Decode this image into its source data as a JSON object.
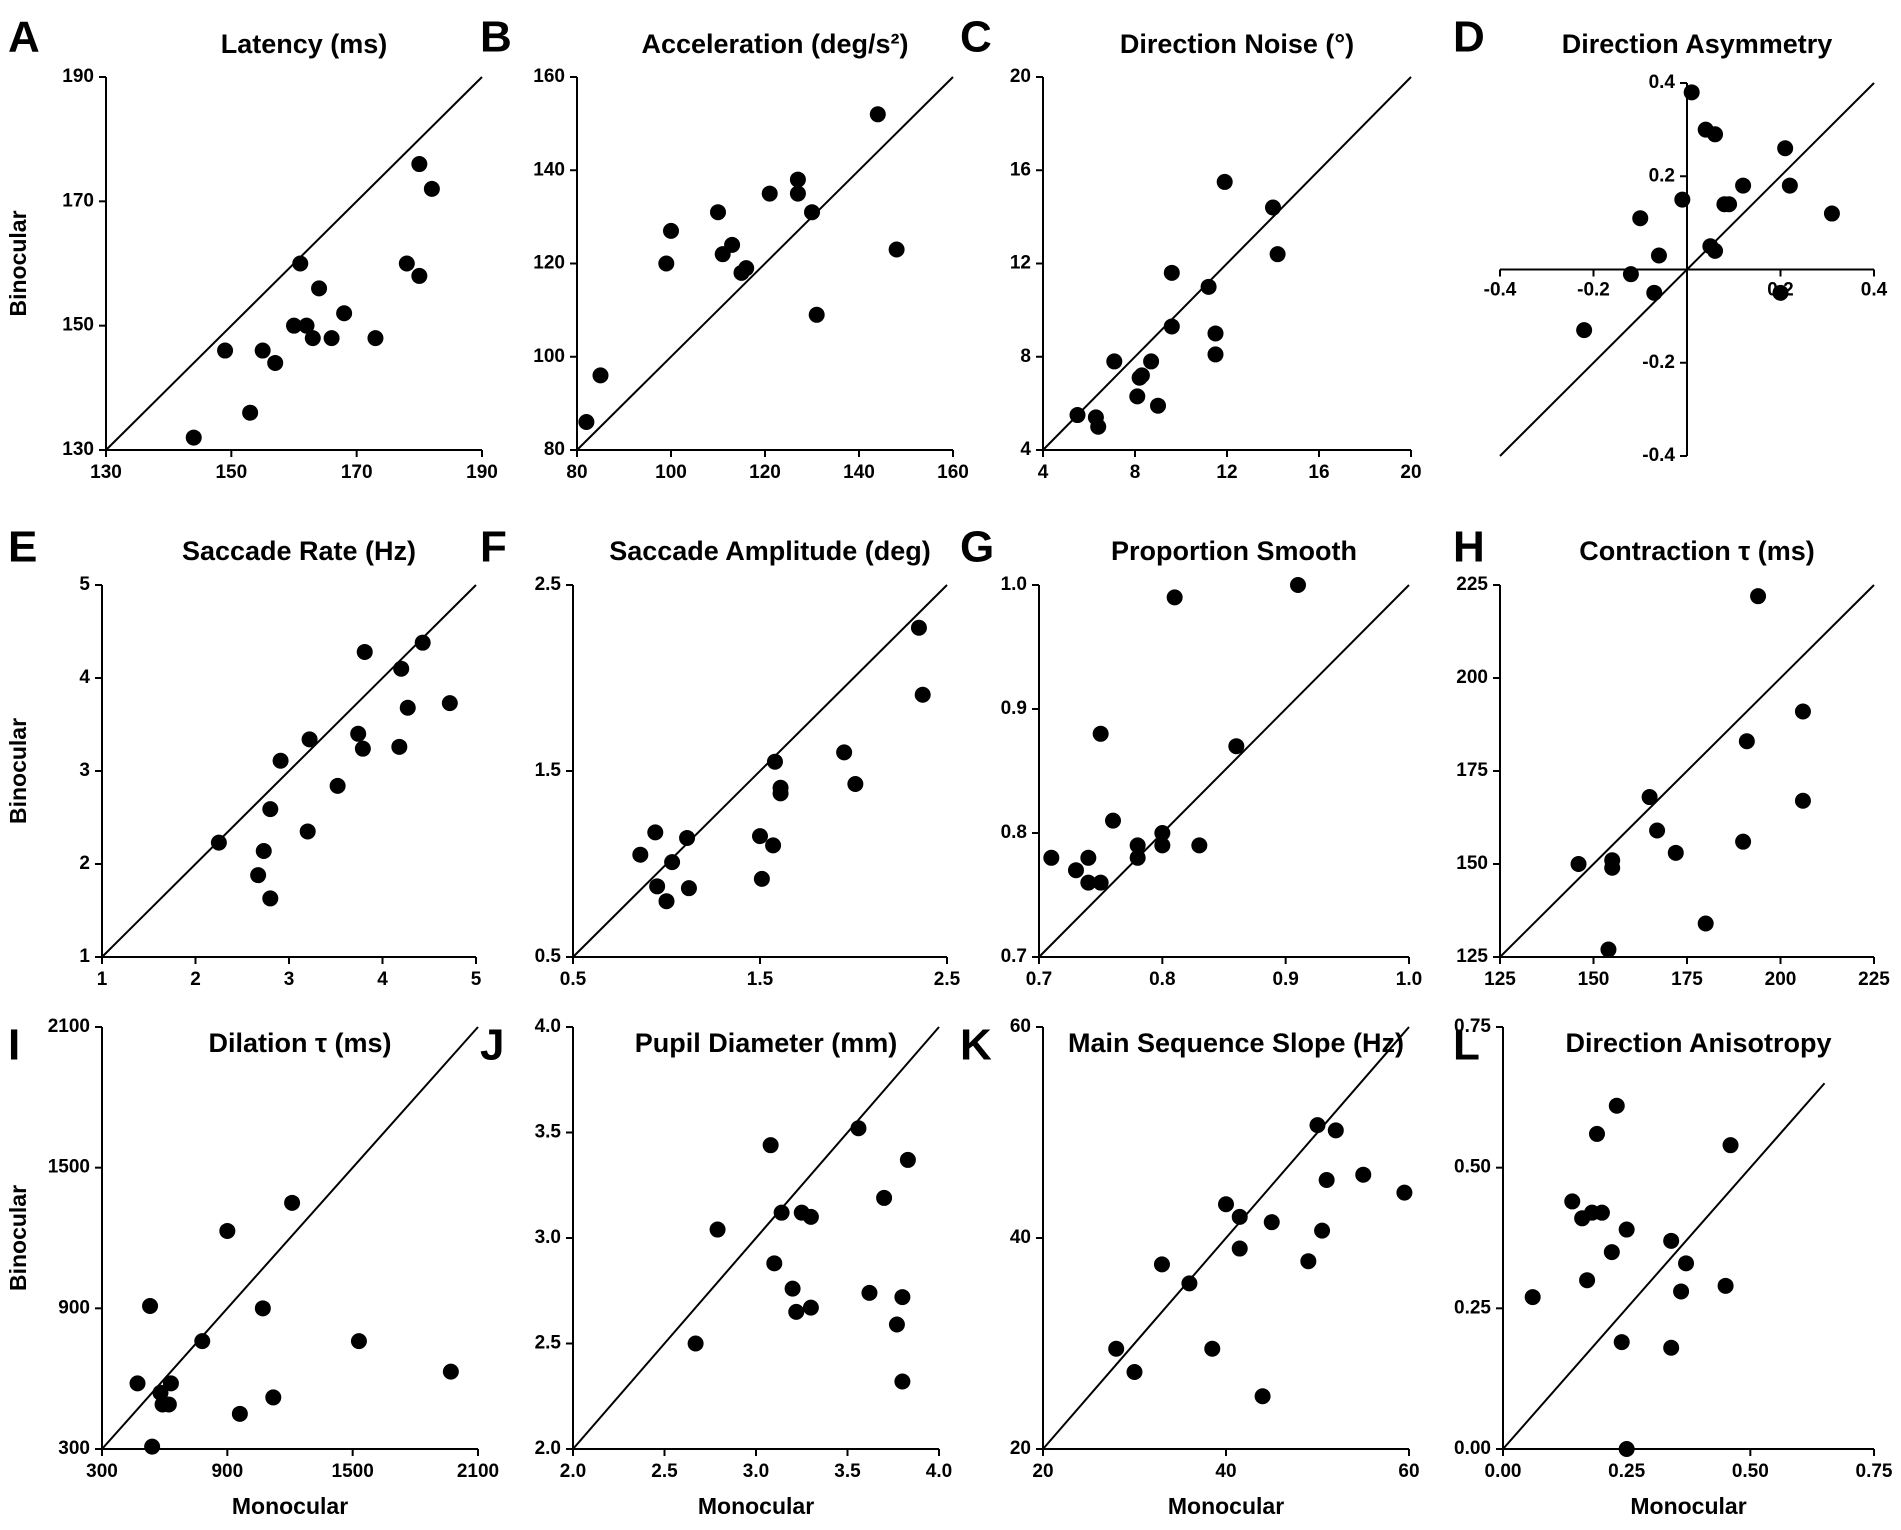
{
  "chart_data": [
    {
      "id": "A",
      "type": "scatter",
      "title": "Latency (ms)",
      "xlabel": "",
      "ylabel": "Binocular",
      "xlim": [
        130,
        190
      ],
      "ylim": [
        130,
        190
      ],
      "xticks": [
        "130",
        "150",
        "170",
        "190"
      ],
      "yticks": [
        "130",
        "150",
        "170",
        "190"
      ],
      "identity_line": true,
      "x": [
        144,
        149,
        153,
        155,
        157,
        160,
        161,
        162,
        163,
        164,
        166,
        168,
        173,
        178,
        180,
        180,
        182
      ],
      "y": [
        132,
        146,
        136,
        146,
        144,
        150,
        160,
        150,
        148,
        156,
        148,
        152,
        148,
        160,
        176,
        158,
        172
      ]
    },
    {
      "id": "B",
      "type": "scatter",
      "title": "Acceleration (deg/s²)",
      "xlabel": "",
      "ylabel": "",
      "xlim": [
        80,
        160
      ],
      "ylim": [
        80,
        160
      ],
      "xticks": [
        "80",
        "100",
        "120",
        "140",
        "160"
      ],
      "yticks": [
        "80",
        "100",
        "120",
        "140",
        "160"
      ],
      "identity_line": true,
      "x": [
        82,
        85,
        99,
        100,
        110,
        111,
        113,
        115,
        116,
        121,
        127,
        127,
        130,
        131,
        144,
        148
      ],
      "y": [
        86,
        96,
        120,
        127,
        131,
        122,
        124,
        118,
        119,
        135,
        138,
        135,
        131,
        109,
        152,
        123
      ]
    },
    {
      "id": "C",
      "type": "scatter",
      "title": "Direction Noise (°)",
      "xlabel": "",
      "ylabel": "",
      "xlim": [
        4,
        20
      ],
      "ylim": [
        4,
        20
      ],
      "xticks": [
        "4",
        "8",
        "12",
        "16",
        "20"
      ],
      "yticks": [
        "4",
        "8",
        "12",
        "16",
        "20"
      ],
      "identity_line": true,
      "x": [
        5.5,
        6.3,
        6.4,
        7.1,
        8.1,
        8.2,
        8.3,
        8.7,
        9.0,
        9.6,
        9.6,
        11.2,
        11.5,
        11.5,
        11.9,
        14.0,
        14.2
      ],
      "y": [
        5.5,
        5.4,
        5.0,
        7.8,
        6.3,
        7.1,
        7.2,
        7.8,
        5.9,
        9.3,
        11.6,
        11.0,
        9.0,
        8.1,
        15.5,
        14.4,
        12.4
      ]
    },
    {
      "id": "D",
      "type": "scatter",
      "title": "Direction Asymmetry",
      "xlabel": "",
      "ylabel": "",
      "xlim": [
        -0.4,
        0.4
      ],
      "ylim": [
        -0.4,
        0.4
      ],
      "xticks": [
        "-0.4",
        "-0.2",
        "0.2",
        "0.4"
      ],
      "yticks": [
        "-0.4",
        "-0.2",
        "0.2",
        "0.4"
      ],
      "xtick_values": [
        -0.4,
        -0.2,
        0.2,
        0.4
      ],
      "ytick_values": [
        -0.4,
        -0.2,
        0.2,
        0.4
      ],
      "identity_line": true,
      "centered_axes": true,
      "x": [
        -0.22,
        -0.12,
        -0.1,
        -0.07,
        -0.06,
        -0.01,
        0.01,
        0.04,
        0.05,
        0.06,
        0.06,
        0.08,
        0.09,
        0.12,
        0.2,
        0.21,
        0.22,
        0.31
      ],
      "y": [
        -0.13,
        -0.01,
        0.11,
        -0.05,
        0.03,
        0.15,
        0.38,
        0.3,
        0.05,
        0.04,
        0.29,
        0.14,
        0.14,
        0.18,
        -0.05,
        0.26,
        0.18,
        0.12
      ]
    },
    {
      "id": "E",
      "type": "scatter",
      "title": "Saccade Rate (Hz)",
      "xlabel": "",
      "ylabel": "Binocular",
      "xlim": [
        1,
        5
      ],
      "ylim": [
        1,
        5
      ],
      "xticks": [
        "1",
        "2",
        "3",
        "4",
        "5"
      ],
      "yticks": [
        "1",
        "2",
        "3",
        "4",
        "5"
      ],
      "identity_line": true,
      "x": [
        2.25,
        2.67,
        2.73,
        2.8,
        2.8,
        2.91,
        3.2,
        3.22,
        3.52,
        3.74,
        3.79,
        3.81,
        4.18,
        4.2,
        4.27,
        4.43,
        4.72
      ],
      "y": [
        2.23,
        1.88,
        2.14,
        2.59,
        1.63,
        3.11,
        2.35,
        3.34,
        2.84,
        3.4,
        3.24,
        4.28,
        3.26,
        4.1,
        3.68,
        4.38,
        3.73
      ]
    },
    {
      "id": "F",
      "type": "scatter",
      "title": "Saccade Amplitude (deg)",
      "xlabel": "",
      "ylabel": "",
      "xlim": [
        0.5,
        2.5
      ],
      "ylim": [
        0.5,
        2.5
      ],
      "xticks": [
        "0.5",
        "1.5",
        "2.5"
      ],
      "yticks": [
        "0.5",
        "1.5",
        "2.5"
      ],
      "xtick_values": [
        0.5,
        1.5,
        2.5
      ],
      "ytick_values": [
        0.5,
        1.5,
        2.5
      ],
      "identity_line": true,
      "x": [
        0.86,
        0.94,
        0.95,
        1.0,
        1.03,
        1.11,
        1.12,
        1.5,
        1.51,
        1.57,
        1.58,
        1.61,
        1.61,
        1.95,
        2.01,
        2.35,
        2.37
      ],
      "y": [
        1.05,
        1.17,
        0.88,
        0.8,
        1.01,
        1.14,
        0.87,
        1.15,
        0.92,
        1.1,
        1.55,
        1.41,
        1.38,
        1.6,
        1.43,
        2.27,
        1.91
      ]
    },
    {
      "id": "G",
      "type": "scatter",
      "title": "Proportion Smooth",
      "xlabel": "",
      "ylabel": "",
      "xlim": [
        0.7,
        1.0
      ],
      "ylim": [
        0.7,
        1.0
      ],
      "xticks": [
        "0.7",
        "0.8",
        "0.9",
        "1.0"
      ],
      "yticks": [
        "0.7",
        "0.8",
        "0.9",
        "1.0"
      ],
      "identity_line": true,
      "x": [
        0.71,
        0.73,
        0.74,
        0.74,
        0.75,
        0.75,
        0.76,
        0.78,
        0.78,
        0.8,
        0.8,
        0.81,
        0.83,
        0.86,
        0.91
      ],
      "y": [
        0.78,
        0.77,
        0.78,
        0.76,
        0.88,
        0.76,
        0.81,
        0.79,
        0.78,
        0.8,
        0.79,
        0.99,
        0.79,
        0.87,
        1.0
      ]
    },
    {
      "id": "H",
      "type": "scatter",
      "title": "Contraction τ (ms)",
      "xlabel": "",
      "ylabel": "",
      "xlim": [
        125,
        225
      ],
      "ylim": [
        125,
        225
      ],
      "xticks": [
        "125",
        "150",
        "175",
        "200",
        "225"
      ],
      "yticks": [
        "125",
        "150",
        "175",
        "200",
        "225"
      ],
      "identity_line": true,
      "x": [
        146,
        154,
        155,
        155,
        165,
        167,
        172,
        180,
        190,
        191,
        194,
        206,
        206
      ],
      "y": [
        150,
        127,
        151,
        149,
        168,
        159,
        153,
        134,
        156,
        183,
        222,
        191,
        167
      ]
    },
    {
      "id": "I",
      "type": "scatter",
      "title": "Dilation τ (ms)",
      "xlabel": "Monocular",
      "ylabel": "Binocular",
      "xlim": [
        300,
        2100
      ],
      "ylim": [
        300,
        2100
      ],
      "xticks": [
        "300",
        "900",
        "1500",
        "2100"
      ],
      "yticks": [
        "300",
        "900",
        "1500",
        "2100"
      ],
      "xtick_values": [
        300,
        900,
        1500,
        2100
      ],
      "ytick_values": [
        300,
        900,
        1500,
        2100
      ],
      "identity_line": true,
      "x": [
        470,
        530,
        540,
        580,
        590,
        620,
        630,
        780,
        900,
        960,
        1070,
        1120,
        1210,
        1530,
        1970
      ],
      "y": [
        580,
        910,
        310,
        540,
        490,
        490,
        580,
        760,
        1230,
        450,
        900,
        520,
        1350,
        760,
        630
      ]
    },
    {
      "id": "J",
      "type": "scatter",
      "title": "Pupil Diameter (mm)",
      "xlabel": "Monocular",
      "ylabel": "",
      "xlim": [
        2.0,
        4.0
      ],
      "ylim": [
        2.0,
        4.0
      ],
      "xticks": [
        "2.0",
        "2.5",
        "3.0",
        "3.5",
        "4.0"
      ],
      "yticks": [
        "2.0",
        "2.5",
        "3.0",
        "3.5",
        "4.0"
      ],
      "identity_line": true,
      "x": [
        2.67,
        2.79,
        3.08,
        3.1,
        3.14,
        3.2,
        3.22,
        3.25,
        3.3,
        3.3,
        3.56,
        3.62,
        3.7,
        3.77,
        3.8,
        3.8,
        3.83
      ],
      "y": [
        2.5,
        3.04,
        3.44,
        2.88,
        3.12,
        2.76,
        2.65,
        3.12,
        3.1,
        2.67,
        3.52,
        2.74,
        3.19,
        2.59,
        2.72,
        2.32,
        3.37
      ]
    },
    {
      "id": "K",
      "type": "scatter",
      "title": "Main Sequence Slope (Hz)",
      "xlabel": "Monocular",
      "ylabel": "",
      "xlim": [
        20,
        60
      ],
      "ylim": [
        20,
        60
      ],
      "xticks": [
        "20",
        "40",
        "60"
      ],
      "yticks": [
        "20",
        "40",
        "60"
      ],
      "xtick_values": [
        20,
        40,
        60
      ],
      "ytick_values": [
        20,
        40,
        60
      ],
      "identity_line": true,
      "x": [
        28,
        30,
        33,
        36,
        38.5,
        40,
        41.5,
        41.5,
        44,
        45,
        49,
        50,
        50.5,
        51,
        52,
        55,
        59.5
      ],
      "y": [
        29.5,
        27.3,
        37.5,
        35.7,
        29.5,
        43.2,
        42,
        39,
        25,
        41.5,
        37.8,
        50.7,
        40.7,
        45.5,
        50.2,
        46,
        44.3
      ]
    },
    {
      "id": "L",
      "type": "scatter",
      "title": "Direction Anisotropy",
      "xlabel": "Monocular",
      "ylabel": "",
      "xlim": [
        0.0,
        0.75
      ],
      "ylim": [
        0.0,
        0.75
      ],
      "xticks": [
        "0.00",
        "0.25",
        "0.50",
        "0.75"
      ],
      "yticks": [
        "0.00",
        "0.25",
        "0.50",
        "0.75"
      ],
      "xtick_values": [
        0,
        0.25,
        0.5,
        0.75
      ],
      "ytick_values": [
        0,
        0.25,
        0.5,
        0.75
      ],
      "identity_line": true,
      "identity_end": 0.65,
      "x": [
        0.06,
        0.14,
        0.16,
        0.17,
        0.18,
        0.19,
        0.2,
        0.22,
        0.23,
        0.24,
        0.25,
        0.25,
        0.34,
        0.34,
        0.36,
        0.37,
        0.45,
        0.46
      ],
      "y": [
        0.27,
        0.44,
        0.41,
        0.3,
        0.42,
        0.56,
        0.42,
        0.35,
        0.61,
        0.19,
        0.39,
        0.0,
        0.37,
        0.18,
        0.28,
        0.33,
        0.29,
        0.54
      ]
    }
  ]
}
